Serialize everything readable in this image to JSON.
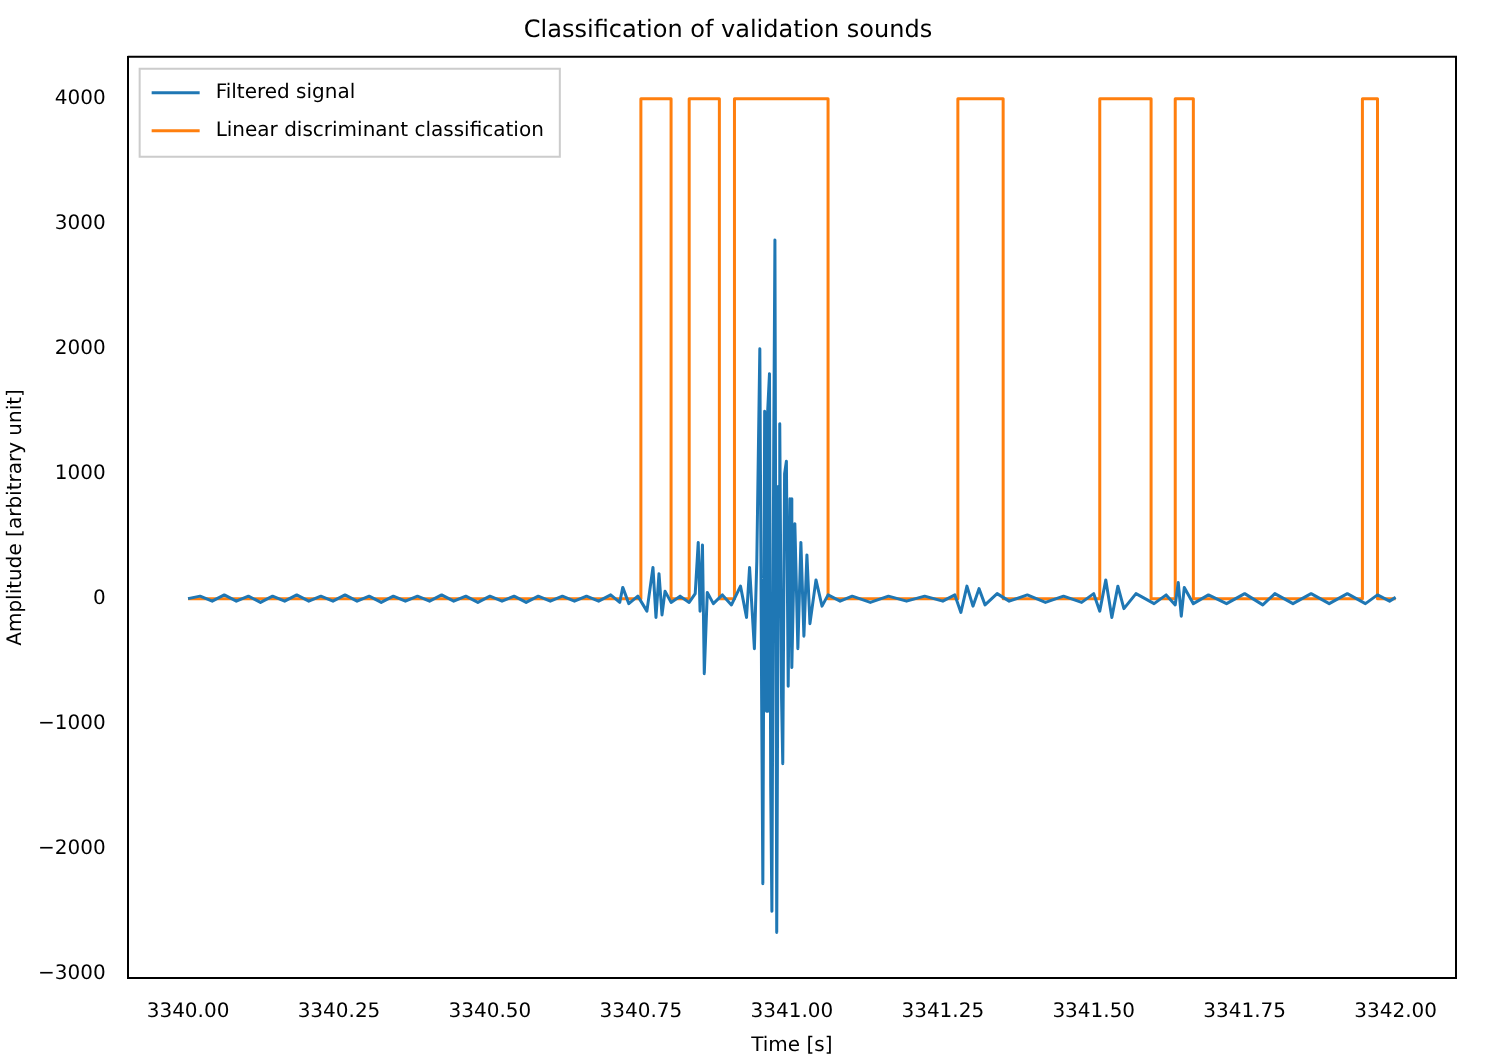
{
  "chart_data": {
    "type": "line",
    "title": "Classification of validation sounds",
    "xlabel": "Time [s]",
    "ylabel": "Amplitude [arbitrary unit]",
    "xlim": [
      3339.9,
      3342.1
    ],
    "ylim": [
      -3035,
      4335
    ],
    "xticks": [
      {
        "value": 3340,
        "label": "3340.00"
      },
      {
        "value": 3340.25,
        "label": "3340.25"
      },
      {
        "value": 3340.5,
        "label": "3340.50"
      },
      {
        "value": 3340.75,
        "label": "3340.75"
      },
      {
        "value": 3341,
        "label": "3341.00"
      },
      {
        "value": 3341.25,
        "label": "3341.25"
      },
      {
        "value": 3341.5,
        "label": "3341.50"
      },
      {
        "value": 3341.75,
        "label": "3341.75"
      },
      {
        "value": 3342,
        "label": "3342.00"
      }
    ],
    "yticks": [
      {
        "value": -3000,
        "label": "−3000"
      },
      {
        "value": -2000,
        "label": "−2000"
      },
      {
        "value": -1000,
        "label": "−1000"
      },
      0,
      1000,
      2000,
      3000,
      4000
    ],
    "grid": false,
    "legend": "top left",
    "marker": "none",
    "line_style": "solid",
    "series": [
      {
        "name": "Filtered signal",
        "color": "#1f77b4",
        "x": [
          3340.0,
          3340.02,
          3340.04,
          3340.06,
          3340.08,
          3340.1,
          3340.12,
          3340.14,
          3340.16,
          3340.18,
          3340.2,
          3340.22,
          3340.24,
          3340.26,
          3340.28,
          3340.3,
          3340.32,
          3340.34,
          3340.36,
          3340.38,
          3340.4,
          3340.42,
          3340.44,
          3340.46,
          3340.48,
          3340.5,
          3340.52,
          3340.54,
          3340.56,
          3340.58,
          3340.6,
          3340.62,
          3340.64,
          3340.66,
          3340.68,
          3340.7,
          3340.715,
          3340.72,
          3340.73,
          3340.745,
          3340.76,
          3340.77,
          3340.775,
          3340.78,
          3340.785,
          3340.79,
          3340.8,
          3340.815,
          3340.83,
          3340.84,
          3340.845,
          3340.848,
          3340.852,
          3340.855,
          3340.86,
          3340.87,
          3340.885,
          3340.9,
          3340.915,
          3340.925,
          3340.93,
          3340.938,
          3340.942,
          3340.947,
          3340.95,
          3340.952,
          3340.955,
          3340.958,
          3340.96,
          3340.963,
          3340.965,
          3340.967,
          3340.97,
          3340.972,
          3340.975,
          3340.978,
          3340.98,
          3340.983,
          3340.985,
          3340.988,
          3340.991,
          3340.994,
          3340.997,
          3341.0,
          3341.005,
          3341.01,
          3341.015,
          3341.02,
          3341.025,
          3341.03,
          3341.04,
          3341.05,
          3341.06,
          3341.08,
          3341.1,
          3341.13,
          3341.16,
          3341.19,
          3341.22,
          3341.25,
          3341.27,
          3341.28,
          3341.29,
          3341.3,
          3341.31,
          3341.32,
          3341.34,
          3341.36,
          3341.39,
          3341.42,
          3341.45,
          3341.48,
          3341.5,
          3341.51,
          3341.52,
          3341.53,
          3341.54,
          3341.55,
          3341.57,
          3341.6,
          3341.62,
          3341.635,
          3341.64,
          3341.645,
          3341.65,
          3341.665,
          3341.69,
          3341.72,
          3341.75,
          3341.78,
          3341.8,
          3341.83,
          3341.86,
          3341.89,
          3341.92,
          3341.95,
          3341.97,
          3341.99,
          3342.0
        ],
        "values": [
          0,
          20,
          -20,
          30,
          -20,
          20,
          -30,
          20,
          -20,
          30,
          -20,
          20,
          -20,
          30,
          -20,
          20,
          -30,
          20,
          -20,
          20,
          -20,
          30,
          -20,
          20,
          -30,
          20,
          -20,
          20,
          -30,
          20,
          -20,
          20,
          -20,
          20,
          -20,
          30,
          -30,
          90,
          -40,
          20,
          -100,
          250,
          -150,
          200,
          -130,
          60,
          -30,
          20,
          -30,
          40,
          450,
          -100,
          430,
          -600,
          50,
          -40,
          30,
          -50,
          100,
          -150,
          250,
          -400,
          300,
          2000,
          -800,
          -2280,
          1500,
          -900,
          1500,
          1800,
          -1500,
          -2500,
          1200,
          2870,
          -2670,
          900,
          1400,
          -800,
          -1320,
          1000,
          1100,
          -700,
          800,
          -550,
          600,
          -400,
          450,
          -300,
          350,
          -200,
          150,
          -60,
          30,
          -20,
          20,
          -30,
          20,
          -20,
          20,
          -20,
          30,
          -110,
          100,
          -60,
          80,
          -50,
          40,
          -20,
          30,
          -30,
          20,
          -30,
          40,
          -100,
          150,
          -150,
          100,
          -80,
          40,
          -40,
          30,
          -50,
          130,
          -140,
          90,
          -40,
          30,
          -40,
          40,
          -50,
          40,
          -40,
          40,
          -40,
          40,
          -40,
          30,
          -20,
          10
        ]
      },
      {
        "name": "Linear discriminant classification",
        "type": "step",
        "color": "#ff7f0e",
        "x": [
          3340,
          3340.75,
          3340.8,
          3340.83,
          3340.88,
          3340.905,
          3341.06,
          3341.275,
          3341.35,
          3341.51,
          3341.595,
          3341.635,
          3341.665,
          3341.945,
          3341.97,
          3342
        ],
        "values": [
          0,
          4000,
          0,
          4000,
          0,
          4000,
          0,
          4000,
          0,
          4000,
          0,
          4000,
          0,
          4000,
          0,
          0
        ]
      }
    ]
  }
}
